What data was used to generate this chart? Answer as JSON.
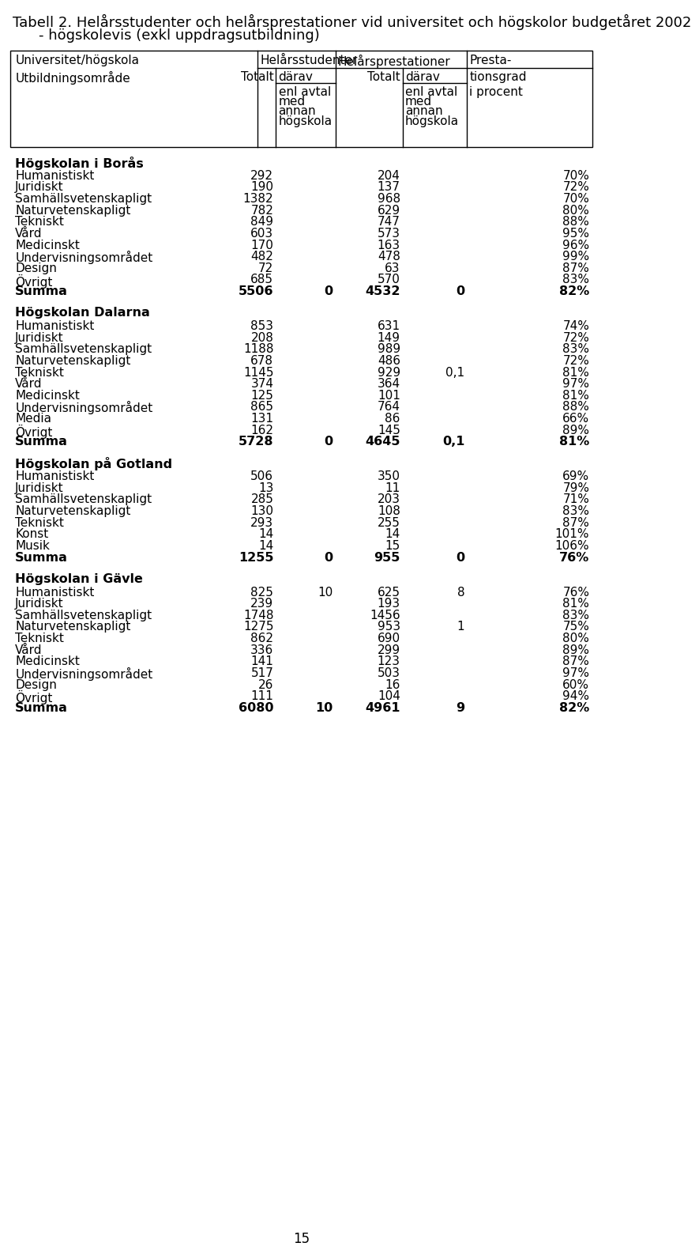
{
  "title_line1": "Tabell 2. Helårsstudenter och helårsprestationer vid universitet och högskolor budgetåret 2002",
  "title_line2": "- högskolevis (exkl uppdragsutbildning)",
  "sections": [
    {
      "name": "Högskolan i Borås",
      "rows": [
        [
          "Humanistiskt",
          "292",
          "",
          "204",
          "",
          "70%"
        ],
        [
          "Juridiskt",
          "190",
          "",
          "137",
          "",
          "72%"
        ],
        [
          "Samhällsvetenskapligt",
          "1382",
          "",
          "968",
          "",
          "70%"
        ],
        [
          "Naturvetenskapligt",
          "782",
          "",
          "629",
          "",
          "80%"
        ],
        [
          "Tekniskt",
          "849",
          "",
          "747",
          "",
          "88%"
        ],
        [
          "Vård",
          "603",
          "",
          "573",
          "",
          "95%"
        ],
        [
          "Medicinskt",
          "170",
          "",
          "163",
          "",
          "96%"
        ],
        [
          "Undervisningsområdet",
          "482",
          "",
          "478",
          "",
          "99%"
        ],
        [
          "Design",
          "72",
          "",
          "63",
          "",
          "87%"
        ],
        [
          "Övrigt",
          "685",
          "",
          "570",
          "",
          "83%"
        ]
      ],
      "summa": [
        "Summa",
        "5506",
        "0",
        "4532",
        "0",
        "82%"
      ]
    },
    {
      "name": "Högskolan Dalarna",
      "rows": [
        [
          "Humanistiskt",
          "853",
          "",
          "631",
          "",
          "74%"
        ],
        [
          "Juridiskt",
          "208",
          "",
          "149",
          "",
          "72%"
        ],
        [
          "Samhällsvetenskapligt",
          "1188",
          "",
          "989",
          "",
          "83%"
        ],
        [
          "Naturvetenskapligt",
          "678",
          "",
          "486",
          "",
          "72%"
        ],
        [
          "Tekniskt",
          "1145",
          "",
          "929",
          "0,1",
          "81%"
        ],
        [
          "Vård",
          "374",
          "",
          "364",
          "",
          "97%"
        ],
        [
          "Medicinskt",
          "125",
          "",
          "101",
          "",
          "81%"
        ],
        [
          "Undervisningsområdet",
          "865",
          "",
          "764",
          "",
          "88%"
        ],
        [
          "Media",
          "131",
          "",
          "86",
          "",
          "66%"
        ],
        [
          "Övrigt",
          "162",
          "",
          "145",
          "",
          "89%"
        ]
      ],
      "summa": [
        "Summa",
        "5728",
        "0",
        "4645",
        "0,1",
        "81%"
      ]
    },
    {
      "name": "Högskolan på Gotland",
      "rows": [
        [
          "Humanistiskt",
          "506",
          "",
          "350",
          "",
          "69%"
        ],
        [
          "Juridiskt",
          "13",
          "",
          "11",
          "",
          "79%"
        ],
        [
          "Samhällsvetenskapligt",
          "285",
          "",
          "203",
          "",
          "71%"
        ],
        [
          "Naturvetenskapligt",
          "130",
          "",
          "108",
          "",
          "83%"
        ],
        [
          "Tekniskt",
          "293",
          "",
          "255",
          "",
          "87%"
        ],
        [
          "Konst",
          "14",
          "",
          "14",
          "",
          "101%"
        ],
        [
          "Musik",
          "14",
          "",
          "15",
          "",
          "106%"
        ]
      ],
      "summa": [
        "Summa",
        "1255",
        "0",
        "955",
        "0",
        "76%"
      ]
    },
    {
      "name": "Högskolan i Gävle",
      "rows": [
        [
          "Humanistiskt",
          "825",
          "10",
          "625",
          "8",
          "76%"
        ],
        [
          "Juridiskt",
          "239",
          "",
          "193",
          "",
          "81%"
        ],
        [
          "Samhällsvetenskapligt",
          "1748",
          "",
          "1456",
          "",
          "83%"
        ],
        [
          "Naturvetenskapligt",
          "1275",
          "",
          "953",
          "1",
          "75%"
        ],
        [
          "Tekniskt",
          "862",
          "",
          "690",
          "",
          "80%"
        ],
        [
          "Vård",
          "336",
          "",
          "299",
          "",
          "89%"
        ],
        [
          "Medicinskt",
          "141",
          "",
          "123",
          "",
          "87%"
        ],
        [
          "Undervisningsområdet",
          "517",
          "",
          "503",
          "",
          "97%"
        ],
        [
          "Design",
          "26",
          "",
          "16",
          "",
          "60%"
        ],
        [
          "Övrigt",
          "111",
          "",
          "104",
          "",
          "94%"
        ]
      ],
      "summa": [
        "Summa",
        "6080",
        "10",
        "4961",
        "9",
        "82%"
      ]
    }
  ],
  "page_number": "15",
  "title_fs": 13.0,
  "header_fs": 11.0,
  "data_fs": 11.0,
  "section_fs": 11.5,
  "bg_color": "white",
  "line_color": "black"
}
